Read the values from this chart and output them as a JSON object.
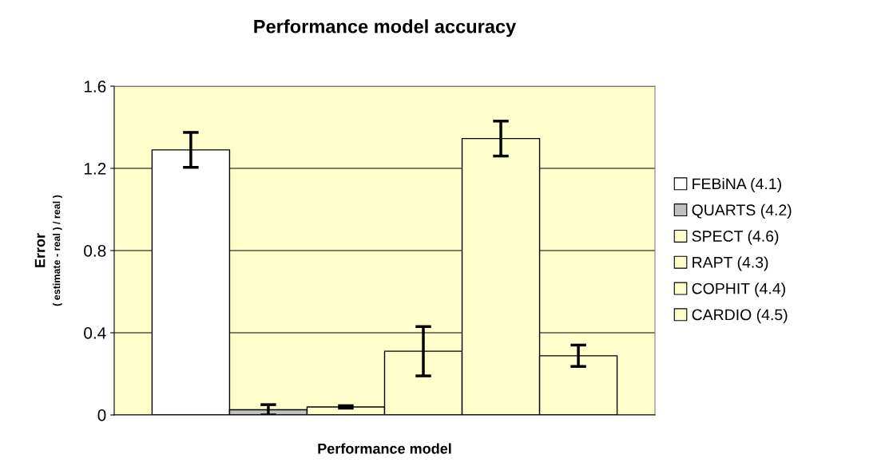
{
  "chart_data": {
    "type": "bar",
    "title": "Performance model accuracy",
    "xlabel": "Performance model",
    "ylabel": "Error\n( estimate - real ) / real )",
    "categories": [
      null
    ],
    "series": [
      {
        "name": "FEBiNA (4.1)",
        "color": "#ffffff",
        "values": [
          1.29
        ],
        "errors": [
          0.085
        ]
      },
      {
        "name": "QUARTS (4.2)",
        "color": "#c0c0c0",
        "values": [
          0.025
        ],
        "errors": [
          0.025
        ]
      },
      {
        "name": "SPECT (4.6)",
        "color": "#ffffcc",
        "values": [
          0.039
        ],
        "errors": [
          0.006
        ]
      },
      {
        "name": "RAPT (4.3)",
        "color": "#ffffcc",
        "values": [
          0.31
        ],
        "errors": [
          0.12
        ]
      },
      {
        "name": "COPHIT (4.4)",
        "color": "#ffffcc",
        "values": [
          1.345
        ],
        "errors": [
          0.085
        ]
      },
      {
        "name": "CARDIO (4.5)",
        "color": "#ffffcc",
        "values": [
          0.288
        ],
        "errors": [
          0.052
        ]
      }
    ],
    "ylim": [
      0,
      1.6
    ],
    "yticks": [
      0,
      0.4,
      0.8,
      1.2,
      1.6
    ],
    "grid": "y",
    "legend": "right"
  }
}
